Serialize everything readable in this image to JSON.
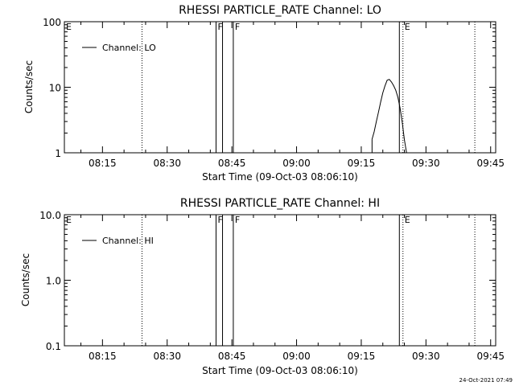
{
  "footer_timestamp": "24-Oct-2021 07:49",
  "colors": {
    "background": "#ffffff",
    "foreground": "#000000"
  },
  "chart_data": [
    {
      "type": "line",
      "title": "RHESSI PARTICLE_RATE Channel: LO",
      "xlabel": "Start Time (09-Oct-03 08:06:10)",
      "ylabel": "Counts/sec",
      "yscale": "log",
      "ylim": [
        1,
        100
      ],
      "xlim": [
        "08:06:10",
        "09:46:10"
      ],
      "x_ticks": [
        "08:15",
        "08:30",
        "08:45",
        "09:00",
        "09:15",
        "09:30",
        "09:45"
      ],
      "y_ticks": [
        "1",
        "10",
        "100"
      ],
      "legend": {
        "placement": "top-left",
        "entries": [
          "Channel: LO"
        ]
      },
      "grid": false,
      "series": [
        {
          "name": "Channel: LO",
          "x": [
            "09:17:30",
            "09:18:00",
            "09:18:30",
            "09:19:00",
            "09:19:30",
            "09:20:00",
            "09:20:30",
            "09:21:00",
            "09:21:30",
            "09:22:00",
            "09:22:30",
            "09:23:00",
            "09:23:30",
            "09:24:00",
            "09:24:30",
            "09:25:00",
            "09:25:30"
          ],
          "values": [
            1.6,
            2.1,
            3.0,
            4.2,
            6.0,
            8.2,
            10.5,
            12.8,
            13.2,
            12.0,
            10.6,
            9.0,
            7.0,
            4.8,
            2.9,
            1.6,
            1.0
          ]
        }
      ],
      "markers": [
        {
          "label": "E",
          "time": "08:06:10",
          "style": "dotted"
        },
        {
          "label": "",
          "time": "08:24:10",
          "style": "dotted"
        },
        {
          "label": "F",
          "time": "08:41:20",
          "style": "solid"
        },
        {
          "label": "",
          "time": "08:42:50",
          "style": "solid"
        },
        {
          "label": "F",
          "time": "08:45:20",
          "style": "solid"
        },
        {
          "label": "",
          "time": "09:23:50",
          "style": "solid"
        },
        {
          "label": "E",
          "time": "09:24:40",
          "style": "dotted"
        },
        {
          "label": "",
          "time": "09:41:20",
          "style": "dotted"
        }
      ]
    },
    {
      "type": "line",
      "title": "RHESSI PARTICLE_RATE Channel: HI",
      "xlabel": "Start Time (09-Oct-03 08:06:10)",
      "ylabel": "Counts/sec",
      "yscale": "log",
      "ylim": [
        0.1,
        10.0
      ],
      "xlim": [
        "08:06:10",
        "09:46:10"
      ],
      "x_ticks": [
        "08:15",
        "08:30",
        "08:45",
        "09:00",
        "09:15",
        "09:30",
        "09:45"
      ],
      "y_ticks": [
        "0.1",
        "1.0",
        "10.0"
      ],
      "legend": {
        "placement": "top-left",
        "entries": [
          "Channel: HI"
        ]
      },
      "grid": false,
      "series": [
        {
          "name": "Channel: HI",
          "x": [],
          "values": []
        }
      ],
      "markers": [
        {
          "label": "E",
          "time": "08:06:10",
          "style": "dotted"
        },
        {
          "label": "",
          "time": "08:24:10",
          "style": "dotted"
        },
        {
          "label": "F",
          "time": "08:41:20",
          "style": "solid"
        },
        {
          "label": "",
          "time": "08:42:50",
          "style": "solid"
        },
        {
          "label": "F",
          "time": "08:45:20",
          "style": "solid"
        },
        {
          "label": "",
          "time": "09:23:50",
          "style": "solid"
        },
        {
          "label": "E",
          "time": "09:24:40",
          "style": "dotted"
        },
        {
          "label": "",
          "time": "09:41:20",
          "style": "dotted"
        }
      ]
    }
  ]
}
